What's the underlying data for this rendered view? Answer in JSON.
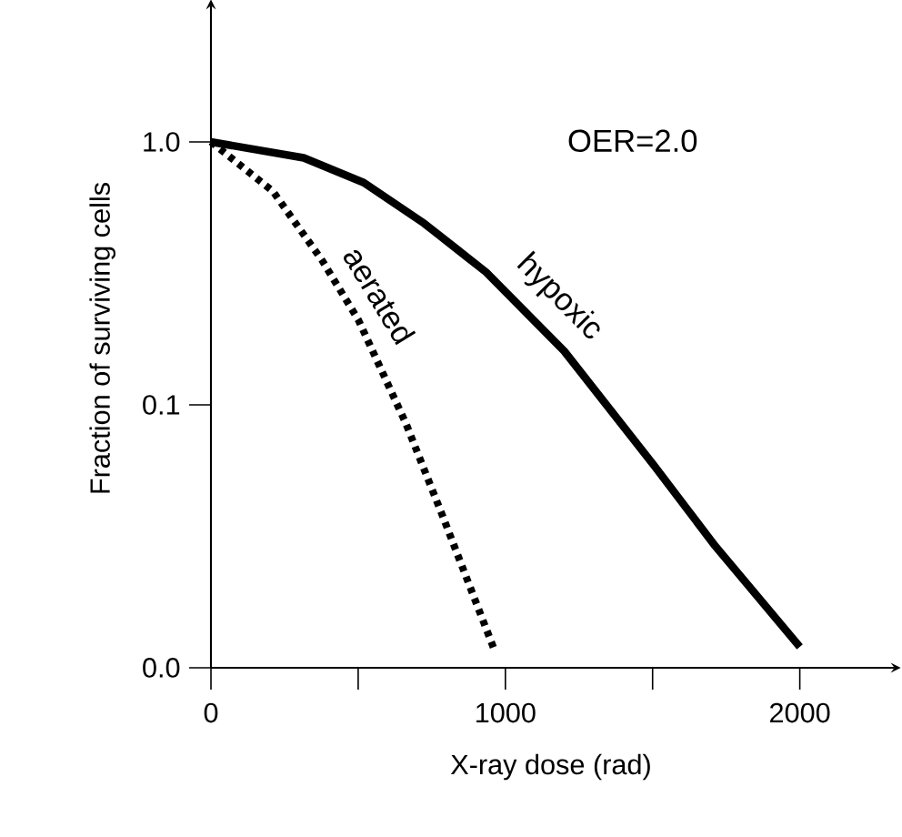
{
  "chart_data": {
    "type": "line",
    "xlabel": "X-ray dose (rad)",
    "ylabel": "Fraction of surviving cells",
    "annotations": [
      "OER=2.0"
    ],
    "log": "y",
    "xlim": [
      0,
      2310
    ],
    "ylim": [
      0.01,
      3.2
    ],
    "xticks": [
      0,
      {
        "value": 500,
        "label": null
      },
      1000,
      {
        "value": 1500,
        "label": null
      },
      2000
    ],
    "yticks": [
      {
        "value": 0.01,
        "label": "0.0"
      },
      {
        "value": 0.1,
        "label": "0.1"
      },
      {
        "value": 1,
        "label": "1.0"
      }
    ],
    "marker": "none",
    "series": [
      {
        "name": "hypoxic",
        "color": "#000000",
        "line_style": "solid",
        "x": [
          0,
          315,
          519,
          724,
          934,
          1200,
          1509,
          1713,
          2000
        ],
        "values": [
          1.0,
          0.87,
          0.7,
          0.49,
          0.32,
          0.16,
          0.058,
          0.029,
          0.012
        ]
      },
      {
        "name": "aerated",
        "color": "#000000",
        "line_style": "dotted",
        "x": [
          0,
          210,
          377,
          501,
          662,
          786,
          965
        ],
        "values": [
          1.0,
          0.65,
          0.355,
          0.21,
          0.085,
          0.038,
          0.0115
        ]
      }
    ]
  }
}
